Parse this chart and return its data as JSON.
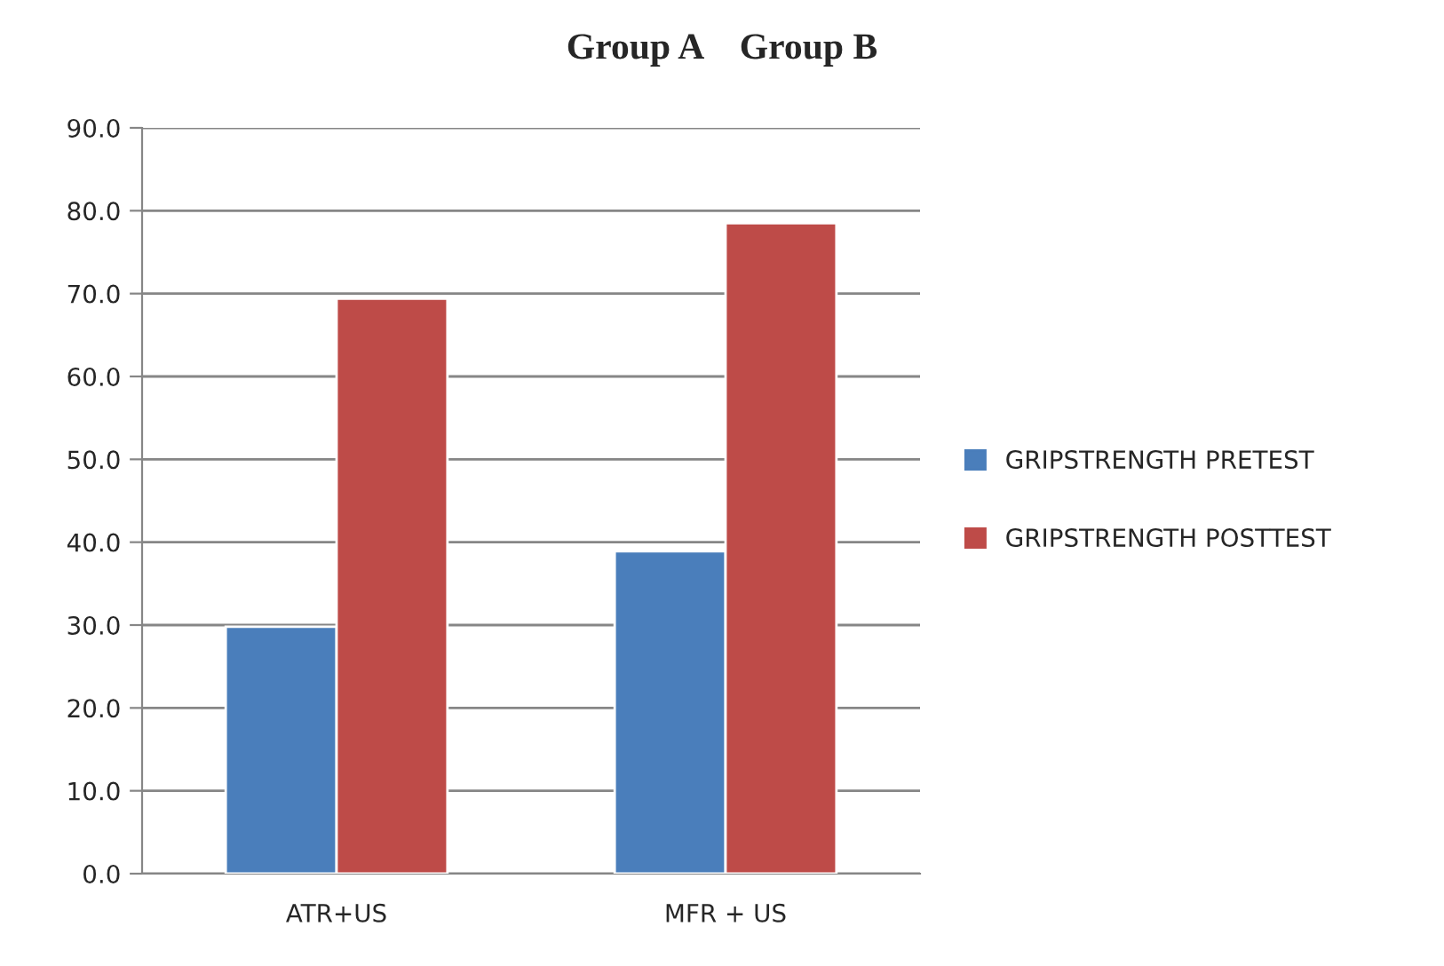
{
  "chart_data": {
    "type": "bar",
    "title": "Group A    Group B",
    "categories": [
      "ATR+US",
      "MFR + US"
    ],
    "series": [
      {
        "name": "GRIPSTRENGTH PRETEST",
        "color": "#4a7ebb",
        "values": [
          29.8,
          38.9
        ]
      },
      {
        "name": "GRIPSTRENGTH POSTTEST",
        "color": "#be4b48",
        "values": [
          69.4,
          78.5
        ]
      }
    ],
    "ylim": [
      0,
      90
    ],
    "yticks": [
      {
        "value": 0,
        "label": "0.0"
      },
      {
        "value": 10,
        "label": "10.0"
      },
      {
        "value": 20,
        "label": "20.0"
      },
      {
        "value": 30,
        "label": "30.0"
      },
      {
        "value": 40,
        "label": "40.0"
      },
      {
        "value": 50,
        "label": "50.0"
      },
      {
        "value": 60,
        "label": "60.0"
      },
      {
        "value": 70,
        "label": "70.0"
      },
      {
        "value": 80,
        "label": "80.0"
      },
      {
        "value": 90,
        "label": "90.0"
      }
    ],
    "grid": "y",
    "legend": "right"
  }
}
